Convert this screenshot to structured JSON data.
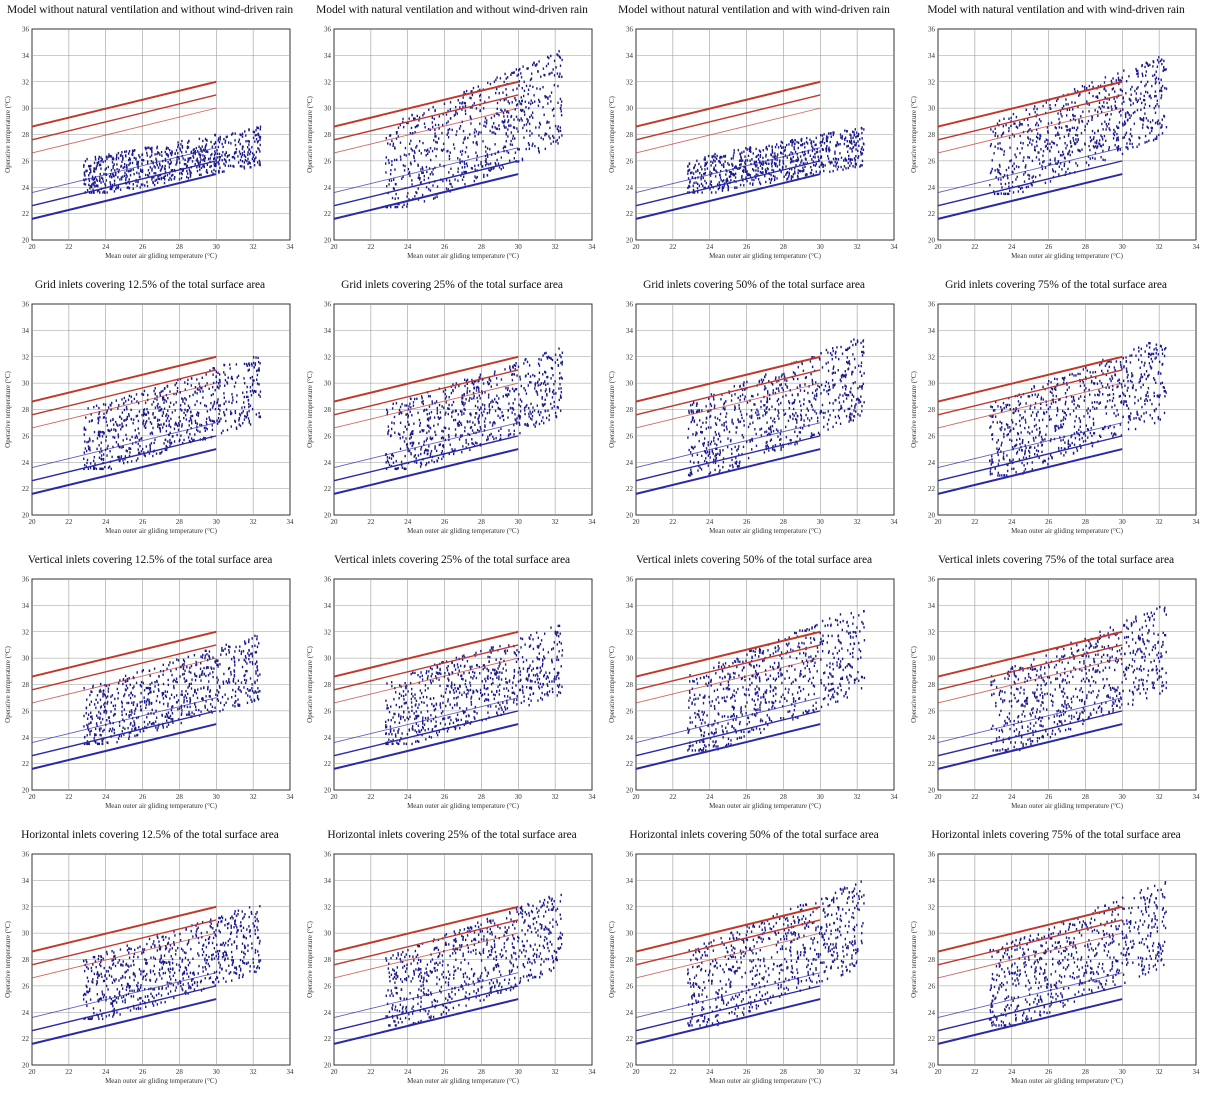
{
  "axes": {
    "xlabel": "Mean outer air gliding temperature (°C)",
    "ylabel": "Operative temperature (°C)",
    "xlim": [
      20,
      34
    ],
    "ylim": [
      20,
      36
    ],
    "xticks": [
      "20",
      "22",
      "24",
      "26",
      "28",
      "30",
      "32",
      "34"
    ],
    "yticks": [
      "20",
      "22",
      "24",
      "26",
      "28",
      "30",
      "32",
      "34",
      "36"
    ]
  },
  "colors": {
    "upper_limit": "#c0392b",
    "lower_limit": "#2a2aa8",
    "points": "#1a1a8c",
    "grid": "#999999"
  },
  "chart_data": [
    {
      "type": "scatter",
      "title": "Model without natural ventilation and without wind-driven rain",
      "xlabel": "Mean outer air gliding temperature (°C)",
      "ylabel": "Operative temperature (°C)",
      "xlim": [
        20,
        34
      ],
      "ylim": [
        20,
        36
      ],
      "grid": true,
      "limits": {
        "x": [
          20,
          30
        ],
        "upper": [
          [
            28.6,
            32.0
          ],
          [
            27.6,
            31.0
          ],
          [
            26.6,
            30.0
          ]
        ],
        "lower": [
          [
            23.6,
            27.0
          ],
          [
            22.6,
            26.0
          ],
          [
            21.6,
            25.0
          ]
        ]
      },
      "scatter_summary": {
        "x_range": [
          22.8,
          32.4
        ],
        "y_range": [
          23.6,
          29.0
        ]
      }
    },
    {
      "type": "scatter",
      "title": "Model with natural ventilation and without wind-driven rain",
      "xlabel": "Mean outer air gliding temperature (°C)",
      "ylabel": "Operative temperature (°C)",
      "xlim": [
        20,
        34
      ],
      "ylim": [
        20,
        36
      ],
      "grid": true,
      "limits": {
        "x": [
          20,
          30
        ],
        "upper": [
          [
            28.6,
            32.0
          ],
          [
            27.6,
            31.0
          ],
          [
            26.6,
            30.0
          ]
        ],
        "lower": [
          [
            23.6,
            27.0
          ],
          [
            22.6,
            26.0
          ],
          [
            21.6,
            25.0
          ]
        ]
      },
      "scatter_summary": {
        "x_range": [
          22.8,
          32.4
        ],
        "y_range": [
          22.5,
          35.5
        ]
      }
    },
    {
      "type": "scatter",
      "title": "Model without natural ventilation and with wind-driven rain",
      "xlabel": "Mean outer air gliding temperature (°C)",
      "ylabel": "Operative temperature (°C)",
      "xlim": [
        20,
        34
      ],
      "ylim": [
        20,
        36
      ],
      "grid": true,
      "limits": {
        "x": [
          20,
          30
        ],
        "upper": [
          [
            28.6,
            32.0
          ],
          [
            27.6,
            31.0
          ],
          [
            26.6,
            30.0
          ]
        ],
        "lower": [
          [
            23.6,
            27.0
          ],
          [
            22.6,
            26.0
          ],
          [
            21.6,
            25.0
          ]
        ]
      },
      "scatter_summary": {
        "x_range": [
          22.8,
          32.4
        ],
        "y_range": [
          23.6,
          29.0
        ]
      }
    },
    {
      "type": "scatter",
      "title": "Model with natural ventilation and with wind-driven rain",
      "xlabel": "Mean outer air gliding temperature (°C)",
      "ylabel": "Operative temperature (°C)",
      "xlim": [
        20,
        34
      ],
      "ylim": [
        20,
        36
      ],
      "grid": true,
      "limits": {
        "x": [
          20,
          30
        ],
        "upper": [
          [
            28.6,
            32.0
          ],
          [
            27.6,
            31.0
          ],
          [
            26.6,
            30.0
          ]
        ],
        "lower": [
          [
            23.6,
            27.0
          ],
          [
            22.6,
            26.0
          ],
          [
            21.6,
            25.0
          ]
        ]
      },
      "scatter_summary": {
        "x_range": [
          22.8,
          32.4
        ],
        "y_range": [
          23.5,
          35.0
        ]
      }
    },
    {
      "type": "scatter",
      "title": "Grid inlets covering 12.5% of the total surface area",
      "xlabel": "Mean outer air gliding temperature (°C)",
      "ylabel": "Operative temperature (°C)",
      "xlim": [
        20,
        34
      ],
      "ylim": [
        20,
        36
      ],
      "grid": true,
      "limits": {
        "x": [
          20,
          30
        ],
        "upper": [
          [
            28.6,
            32.0
          ],
          [
            27.6,
            31.0
          ],
          [
            26.6,
            30.0
          ]
        ],
        "lower": [
          [
            23.6,
            27.0
          ],
          [
            22.6,
            26.0
          ],
          [
            21.6,
            25.0
          ]
        ]
      },
      "scatter_summary": {
        "x_range": [
          22.8,
          32.4
        ],
        "y_range": [
          23.5,
          33.0
        ]
      }
    },
    {
      "type": "scatter",
      "title": "Grid inlets covering 25% of the total surface area",
      "xlabel": "Mean outer air gliding temperature (°C)",
      "ylabel": "Operative temperature (°C)",
      "xlim": [
        20,
        34
      ],
      "ylim": [
        20,
        36
      ],
      "grid": true,
      "limits": {
        "x": [
          20,
          30
        ],
        "upper": [
          [
            28.6,
            32.0
          ],
          [
            27.6,
            31.0
          ],
          [
            26.6,
            30.0
          ]
        ],
        "lower": [
          [
            23.6,
            27.0
          ],
          [
            22.6,
            26.0
          ],
          [
            21.6,
            25.0
          ]
        ]
      },
      "scatter_summary": {
        "x_range": [
          22.8,
          32.4
        ],
        "y_range": [
          23.5,
          33.5
        ]
      }
    },
    {
      "type": "scatter",
      "title": "Grid inlets covering 50% of the total surface area",
      "xlabel": "Mean outer air gliding temperature (°C)",
      "ylabel": "Operative temperature (°C)",
      "xlim": [
        20,
        34
      ],
      "ylim": [
        20,
        36
      ],
      "grid": true,
      "limits": {
        "x": [
          20,
          30
        ],
        "upper": [
          [
            28.6,
            32.0
          ],
          [
            27.6,
            31.0
          ],
          [
            26.6,
            30.0
          ]
        ],
        "lower": [
          [
            23.6,
            27.0
          ],
          [
            22.6,
            26.0
          ],
          [
            21.6,
            25.0
          ]
        ]
      },
      "scatter_summary": {
        "x_range": [
          22.8,
          32.4
        ],
        "y_range": [
          23.0,
          34.5
        ]
      }
    },
    {
      "type": "scatter",
      "title": "Grid inlets covering 75% of the total surface area",
      "xlabel": "Mean outer air gliding temperature (°C)",
      "ylabel": "Operative temperature (°C)",
      "xlim": [
        20,
        34
      ],
      "ylim": [
        20,
        36
      ],
      "grid": true,
      "limits": {
        "x": [
          20,
          30
        ],
        "upper": [
          [
            28.6,
            32.0
          ],
          [
            27.6,
            31.0
          ],
          [
            26.6,
            30.0
          ]
        ],
        "lower": [
          [
            23.6,
            27.0
          ],
          [
            22.6,
            26.0
          ],
          [
            21.6,
            25.0
          ]
        ]
      },
      "scatter_summary": {
        "x_range": [
          22.8,
          32.4
        ],
        "y_range": [
          23.0,
          34.5
        ]
      }
    },
    {
      "type": "scatter",
      "title": "Vertical inlets covering 12.5% of the total surface area",
      "xlabel": "Mean outer air gliding temperature (°C)",
      "ylabel": "Operative temperature (°C)",
      "xlim": [
        20,
        34
      ],
      "ylim": [
        20,
        36
      ],
      "grid": true,
      "limits": {
        "x": [
          20,
          30
        ],
        "upper": [
          [
            28.6,
            32.0
          ],
          [
            27.6,
            31.0
          ],
          [
            26.6,
            30.0
          ]
        ],
        "lower": [
          [
            23.6,
            27.0
          ],
          [
            22.6,
            26.0
          ],
          [
            21.6,
            25.0
          ]
        ]
      },
      "scatter_summary": {
        "x_range": [
          22.8,
          32.4
        ],
        "y_range": [
          23.5,
          32.5
        ]
      }
    },
    {
      "type": "scatter",
      "title": "Vertical inlets covering 25% of the total surface area",
      "xlabel": "Mean outer air gliding temperature (°C)",
      "ylabel": "Operative temperature (°C)",
      "xlim": [
        20,
        34
      ],
      "ylim": [
        20,
        36
      ],
      "grid": true,
      "limits": {
        "x": [
          20,
          30
        ],
        "upper": [
          [
            28.6,
            32.0
          ],
          [
            27.6,
            31.0
          ],
          [
            26.6,
            30.0
          ]
        ],
        "lower": [
          [
            23.6,
            27.0
          ],
          [
            22.6,
            26.0
          ],
          [
            21.6,
            25.0
          ]
        ]
      },
      "scatter_summary": {
        "x_range": [
          22.8,
          32.4
        ],
        "y_range": [
          23.5,
          33.5
        ]
      }
    },
    {
      "type": "scatter",
      "title": "Vertical inlets covering 50% of the total surface area",
      "xlabel": "Mean outer air gliding temperature (°C)",
      "ylabel": "Operative temperature (°C)",
      "xlim": [
        20,
        34
      ],
      "ylim": [
        20,
        36
      ],
      "grid": true,
      "limits": {
        "x": [
          20,
          30
        ],
        "upper": [
          [
            28.6,
            32.0
          ],
          [
            27.6,
            31.0
          ],
          [
            26.6,
            30.0
          ]
        ],
        "lower": [
          [
            23.6,
            27.0
          ],
          [
            22.6,
            26.0
          ],
          [
            21.6,
            25.0
          ]
        ]
      },
      "scatter_summary": {
        "x_range": [
          22.8,
          32.4
        ],
        "y_range": [
          23.0,
          35.0
        ]
      }
    },
    {
      "type": "scatter",
      "title": "Vertical inlets covering 75% of the total surface area",
      "xlabel": "Mean outer air gliding temperature (°C)",
      "ylabel": "Operative temperature (°C)",
      "xlim": [
        20,
        34
      ],
      "ylim": [
        20,
        36
      ],
      "grid": true,
      "limits": {
        "x": [
          20,
          30
        ],
        "upper": [
          [
            28.6,
            32.0
          ],
          [
            27.6,
            31.0
          ],
          [
            26.6,
            30.0
          ]
        ],
        "lower": [
          [
            23.6,
            27.0
          ],
          [
            22.6,
            26.0
          ],
          [
            21.6,
            25.0
          ]
        ]
      },
      "scatter_summary": {
        "x_range": [
          22.8,
          32.4
        ],
        "y_range": [
          23.0,
          35.0
        ]
      }
    },
    {
      "type": "scatter",
      "title": "Horizontal inlets covering 12.5% of the total surface area",
      "xlabel": "Mean outer air gliding temperature (°C)",
      "ylabel": "Operative temperature (°C)",
      "xlim": [
        20,
        34
      ],
      "ylim": [
        20,
        36
      ],
      "grid": true,
      "limits": {
        "x": [
          20,
          30
        ],
        "upper": [
          [
            28.6,
            32.0
          ],
          [
            27.6,
            31.0
          ],
          [
            26.6,
            30.0
          ]
        ],
        "lower": [
          [
            23.6,
            27.0
          ],
          [
            22.6,
            26.0
          ],
          [
            21.6,
            25.0
          ]
        ]
      },
      "scatter_summary": {
        "x_range": [
          22.8,
          32.4
        ],
        "y_range": [
          23.5,
          33.0
        ]
      }
    },
    {
      "type": "scatter",
      "title": "Horizontal inlets covering 25% of the total surface area",
      "xlabel": "Mean outer air gliding temperature (°C)",
      "ylabel": "Operative temperature (°C)",
      "xlim": [
        20,
        34
      ],
      "ylim": [
        20,
        36
      ],
      "grid": true,
      "limits": {
        "x": [
          20,
          30
        ],
        "upper": [
          [
            28.6,
            32.0
          ],
          [
            27.6,
            31.0
          ],
          [
            26.6,
            30.0
          ]
        ],
        "lower": [
          [
            23.6,
            27.0
          ],
          [
            22.6,
            26.0
          ],
          [
            21.6,
            25.0
          ]
        ]
      },
      "scatter_summary": {
        "x_range": [
          22.8,
          32.4
        ],
        "y_range": [
          23.0,
          34.0
        ]
      }
    },
    {
      "type": "scatter",
      "title": "Horizontal inlets covering 50% of the total surface area",
      "xlabel": "Mean outer air gliding temperature (°C)",
      "ylabel": "Operative temperature (°C)",
      "xlim": [
        20,
        34
      ],
      "ylim": [
        20,
        36
      ],
      "grid": true,
      "limits": {
        "x": [
          20,
          30
        ],
        "upper": [
          [
            28.6,
            32.0
          ],
          [
            27.6,
            31.0
          ],
          [
            26.6,
            30.0
          ]
        ],
        "lower": [
          [
            23.6,
            27.0
          ],
          [
            22.6,
            26.0
          ],
          [
            21.6,
            25.0
          ]
        ]
      },
      "scatter_summary": {
        "x_range": [
          22.8,
          32.4
        ],
        "y_range": [
          23.0,
          35.0
        ]
      }
    },
    {
      "type": "scatter",
      "title": "Horizontal inlets covering 75% of the total surface area",
      "xlabel": "Mean outer air gliding temperature (°C)",
      "ylabel": "Operative temperature (°C)",
      "xlim": [
        20,
        34
      ],
      "ylim": [
        20,
        36
      ],
      "grid": true,
      "limits": {
        "x": [
          20,
          30
        ],
        "upper": [
          [
            28.6,
            32.0
          ],
          [
            27.6,
            31.0
          ],
          [
            26.6,
            30.0
          ]
        ],
        "lower": [
          [
            23.6,
            27.0
          ],
          [
            22.6,
            26.0
          ],
          [
            21.6,
            25.0
          ]
        ]
      },
      "scatter_summary": {
        "x_range": [
          22.8,
          32.4
        ],
        "y_range": [
          23.0,
          35.0
        ]
      }
    }
  ]
}
